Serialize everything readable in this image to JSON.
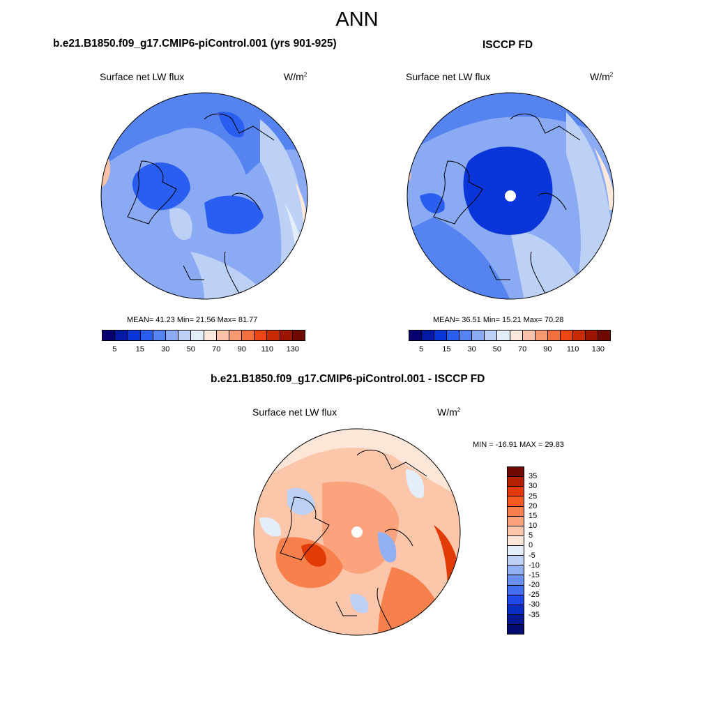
{
  "title": "ANN",
  "panels": [
    {
      "case_title": "b.e21.B1850.f09_g17.CMIP6-piControl.001 (yrs 901-925)",
      "variable": "Surface net LW flux",
      "units": "W/m",
      "units_sup": "2",
      "stats": "MEAN=  41.23  Min=  21.56  Max=  81.77",
      "has_pole_hole": false
    },
    {
      "case_title": "ISCCP FD",
      "variable": "Surface net LW flux",
      "units": "W/m",
      "units_sup": "2",
      "stats": "MEAN=  36.51  Min=  15.21  Max=  70.28",
      "has_pole_hole": true
    },
    {
      "case_title": "b.e21.B1850.f09_g17.CMIP6-piControl.001 - ISCCP FD",
      "variable": "Surface net LW flux",
      "units": "W/m",
      "units_sup": "2",
      "stats": "MIN = -16.91 MAX =  29.83",
      "has_pole_hole": true
    }
  ],
  "abs_colorbar": {
    "colors": [
      "#08006e",
      "#0419a6",
      "#0a35d8",
      "#2a5ef0",
      "#5584f0",
      "#8aaaf4",
      "#bdd0f6",
      "#e4eefa",
      "#fde8dc",
      "#f9c2a8",
      "#f79a72",
      "#f4703e",
      "#ee4515",
      "#c92b06",
      "#9a1602",
      "#6e0a00"
    ],
    "ticks": [
      "5",
      "15",
      "30",
      "50",
      "70",
      "90",
      "110",
      "130"
    ]
  },
  "diff_colorbar": {
    "colors": [
      "#6e0a00",
      "#b22200",
      "#e23b05",
      "#f45a22",
      "#f7804c",
      "#faa37c",
      "#fcc6ab",
      "#fde6d8",
      "#e4eefa",
      "#bdd0f6",
      "#92b0f4",
      "#6890f2",
      "#4470f0",
      "#1f48e6",
      "#0a2dc4",
      "#061a98",
      "#040c70"
    ],
    "ticks": [
      "35",
      "30",
      "25",
      "20",
      "15",
      "10",
      "5",
      "0",
      "-5",
      "-10",
      "-15",
      "-20",
      "-25",
      "-30",
      "-35"
    ]
  }
}
